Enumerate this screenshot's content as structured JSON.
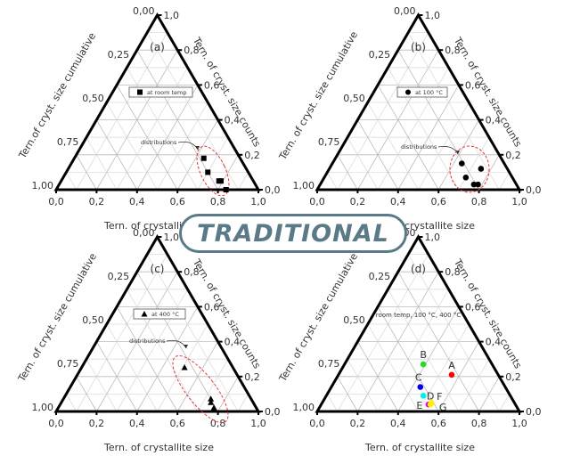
{
  "banner": {
    "text": "TRADITIONAL",
    "color": "#5b7a88"
  },
  "axes": {
    "bottom_label": "Tern. of crystallite size",
    "right_label": "Tern. of cryst. size counts",
    "left_label_a": "Tern.of cryst. size cumulative",
    "left_label": "Tern. of cryst. size cumulative",
    "bottom_ticks": [
      "0,0",
      "0,2",
      "0,4",
      "0,6",
      "0,8",
      "1,0"
    ],
    "right_ticks": [
      "0,0",
      "0,2",
      "0,4",
      "0,6",
      "0,8",
      "1,0"
    ],
    "left_ticks": [
      "0,00",
      "0,25",
      "0,50",
      "0,75",
      "1,00"
    ]
  },
  "chart_data": [
    {
      "type": "scatter",
      "subtype": "ternary",
      "panel": "(a)",
      "legend": "at room temp",
      "marker": "square",
      "annotation": "distributions",
      "xlabel": "Tern. of crystallite size",
      "ylabel_right": "Tern. of cryst. size counts",
      "ylabel_left": "Tern.of cryst. size cumulative",
      "points": [
        {
          "size": 0.64,
          "counts": 0.18
        },
        {
          "size": 0.7,
          "counts": 0.1
        },
        {
          "size": 0.78,
          "counts": 0.05
        },
        {
          "size": 0.79,
          "counts": 0.05
        },
        {
          "size": 0.84,
          "counts": 0.0
        }
      ]
    },
    {
      "type": "scatter",
      "subtype": "ternary",
      "panel": "(b)",
      "legend": "at 100 °C",
      "marker": "circle",
      "annotation": "distributions",
      "xlabel": "Tern. of crystallite size",
      "ylabel_right": "Tern. of cryst. size counts",
      "ylabel_left": "Tern. of cryst. size cumulative",
      "points": [
        {
          "size": 0.64,
          "counts": 0.15
        },
        {
          "size": 0.7,
          "counts": 0.07
        },
        {
          "size": 0.76,
          "counts": 0.03
        },
        {
          "size": 0.78,
          "counts": 0.03
        },
        {
          "size": 0.75,
          "counts": 0.12
        }
      ]
    },
    {
      "type": "scatter",
      "subtype": "ternary",
      "panel": "(c)",
      "legend": "at 400 °C",
      "marker": "triangle",
      "annotation": "distributions",
      "xlabel": "Tern. of crystallite size",
      "ylabel_right": "Tern. of cryst. size counts",
      "ylabel_left": "Tern. of cryst. size cumulative",
      "points": [
        {
          "size": 0.51,
          "counts": 0.25
        },
        {
          "size": 0.73,
          "counts": 0.07
        },
        {
          "size": 0.74,
          "counts": 0.05
        },
        {
          "size": 0.77,
          "counts": 0.02
        }
      ]
    },
    {
      "type": "scatter",
      "subtype": "ternary",
      "panel": "(d)",
      "legend": "room temp, 100 °C, 400 °C",
      "marker": "circle",
      "xlabel": "Tern. of crystallite size",
      "ylabel_right": "Tern. of cryst. size counts",
      "ylabel_left": "Tern. of cryst. size cumulative",
      "points": [
        {
          "label": "A",
          "size": 0.56,
          "counts": 0.21,
          "color": "#ff0000"
        },
        {
          "label": "B",
          "size": 0.39,
          "counts": 0.27,
          "color": "#22dd22"
        },
        {
          "label": "C",
          "size": 0.44,
          "counts": 0.14,
          "color": "#0000ee"
        },
        {
          "label": "D",
          "size": 0.48,
          "counts": 0.09,
          "color": "#00eeee"
        },
        {
          "label": "E",
          "size": 0.53,
          "counts": 0.04,
          "color": "#ee00ee"
        },
        {
          "label": "F",
          "size": 0.54,
          "counts": 0.05,
          "color": "#ffee00"
        },
        {
          "label": "G",
          "size": 0.54,
          "counts": 0.04,
          "color": "#ffee00"
        }
      ]
    }
  ]
}
